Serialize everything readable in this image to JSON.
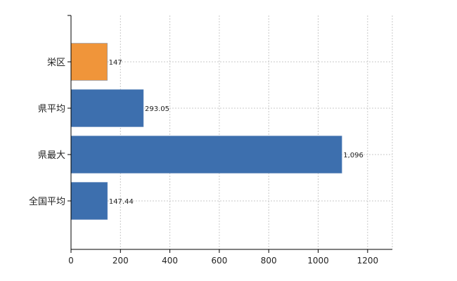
{
  "chart_data": {
    "type": "bar",
    "orientation": "horizontal",
    "categories": [
      "栄区",
      "県平均",
      "県最大",
      "全国平均"
    ],
    "values": [
      147,
      293.05,
      1096,
      147.44
    ],
    "value_labels": [
      "147",
      "293.05",
      "1,096",
      "147.44"
    ],
    "colors": [
      "#f0953a",
      "#3d6fae",
      "#3d6fae",
      "#3d6fae"
    ],
    "title": "",
    "xlabel": "",
    "ylabel": "",
    "xlim": [
      0,
      1300
    ],
    "xticks": [
      0,
      200,
      400,
      600,
      800,
      1000,
      1200
    ],
    "xtick_labels": [
      "0",
      "200",
      "400",
      "600",
      "800",
      "1000",
      "1200"
    ],
    "grid": "vertical dotted",
    "legend": "none"
  }
}
